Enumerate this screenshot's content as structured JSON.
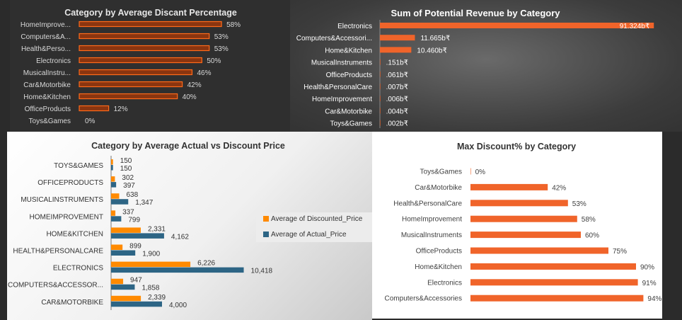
{
  "charts": [
    {
      "id": "avg_discount_pct",
      "type": "bar",
      "title": "Category by Average Discant Percentage",
      "categories": [
        "HomeImprove...",
        "Computers&A...",
        "Health&Perso...",
        "Electronics",
        "MusicalInstru...",
        "Car&Motorbike",
        "Home&Kitchen",
        "OfficeProducts",
        "Toys&Games"
      ],
      "values": [
        58,
        53,
        53,
        50,
        46,
        42,
        40,
        12,
        0
      ],
      "data_labels": [
        "58%",
        "53%",
        "53%",
        "50%",
        "46%",
        "42%",
        "40%",
        "12%",
        "0%"
      ],
      "xlim": [
        0,
        60
      ],
      "grid": false,
      "colors": {
        "bar_fill": "#8a3510",
        "bar_stroke": "#ff6a1a",
        "text": "#d8d8d8",
        "title": "#e6e6e6"
      }
    },
    {
      "id": "potential_revenue",
      "type": "bar",
      "title": "Sum of Potential Revenue by Category",
      "categories": [
        "Electronics",
        "Computers&Accessori...",
        "Home&Kitchen",
        "MusicalInstruments",
        "OfficeProducts",
        "Health&PersonalCare",
        "HomeImprovement",
        "Car&Motorbike",
        "Toys&Games"
      ],
      "values": [
        91.324,
        11.665,
        10.46,
        0.151,
        0.061,
        0.007,
        0.006,
        0.004,
        0.002
      ],
      "data_labels": [
        "91.324b₹",
        "11.665b₹",
        "10.460b₹",
        ".151b₹",
        ".061b₹",
        ".007b₹",
        ".006b₹",
        ".004b₹",
        ".002b₹"
      ],
      "xlim": [
        0,
        100
      ],
      "grid": false,
      "colors": {
        "bar": "#f0642a",
        "text": "#ffffff",
        "title": "#ffffff"
      }
    },
    {
      "id": "avg_actual_vs_discount",
      "type": "bar",
      "title": "Category by Average Actual vs Discount Price",
      "categories": [
        "TOYS&GAMES",
        "OFFICEPRODUCTS",
        "MUSICALINSTRUMENTS",
        "HOMEIMPROVEMENT",
        "HOME&KITCHEN",
        "HEALTH&PERSONALCARE",
        "ELECTRONICS",
        "COMPUTERS&ACCESSOR...",
        "CAR&MOTORBIKE"
      ],
      "series": [
        {
          "name": "Average of Discounted_Price",
          "values": [
            150,
            302,
            638,
            337,
            2331,
            899,
            6226,
            947,
            2339
          ],
          "labels": [
            "150",
            "302",
            "638",
            "337",
            "2,331",
            "899",
            "6,226",
            "947",
            "2,339"
          ],
          "color": "#ff8a00"
        },
        {
          "name": "Average of Actual_Price",
          "values": [
            150,
            397,
            1347,
            799,
            4162,
            1900,
            10418,
            1858,
            4000
          ],
          "labels": [
            "150",
            "397",
            "1,347",
            "799",
            "4,162",
            "1,900",
            "10,418",
            "1,858",
            "4,000"
          ],
          "color": "#2d6585"
        }
      ],
      "xlim": [
        0,
        12000
      ],
      "legend": "right",
      "grid": false,
      "colors": {
        "text": "#333333",
        "title": "#333333"
      }
    },
    {
      "id": "max_discount_pct",
      "type": "bar",
      "title": "Max Discount% by Category",
      "categories": [
        "Toys&Games",
        "Car&Motorbike",
        "Health&PersonalCare",
        "HomeImprovement",
        "MusicalInstruments",
        "OfficeProducts",
        "Home&Kitchen",
        "Electronics",
        "Computers&Accessories"
      ],
      "values": [
        0,
        42,
        53,
        58,
        60,
        75,
        90,
        91,
        94
      ],
      "data_labels": [
        "0%",
        "42%",
        "53%",
        "58%",
        "60%",
        "75%",
        "90%",
        "91%",
        "94%"
      ],
      "xlim": [
        0,
        100
      ],
      "grid": false,
      "colors": {
        "bar": "#f0642a",
        "text": "#404040",
        "title": "#333333"
      }
    }
  ]
}
